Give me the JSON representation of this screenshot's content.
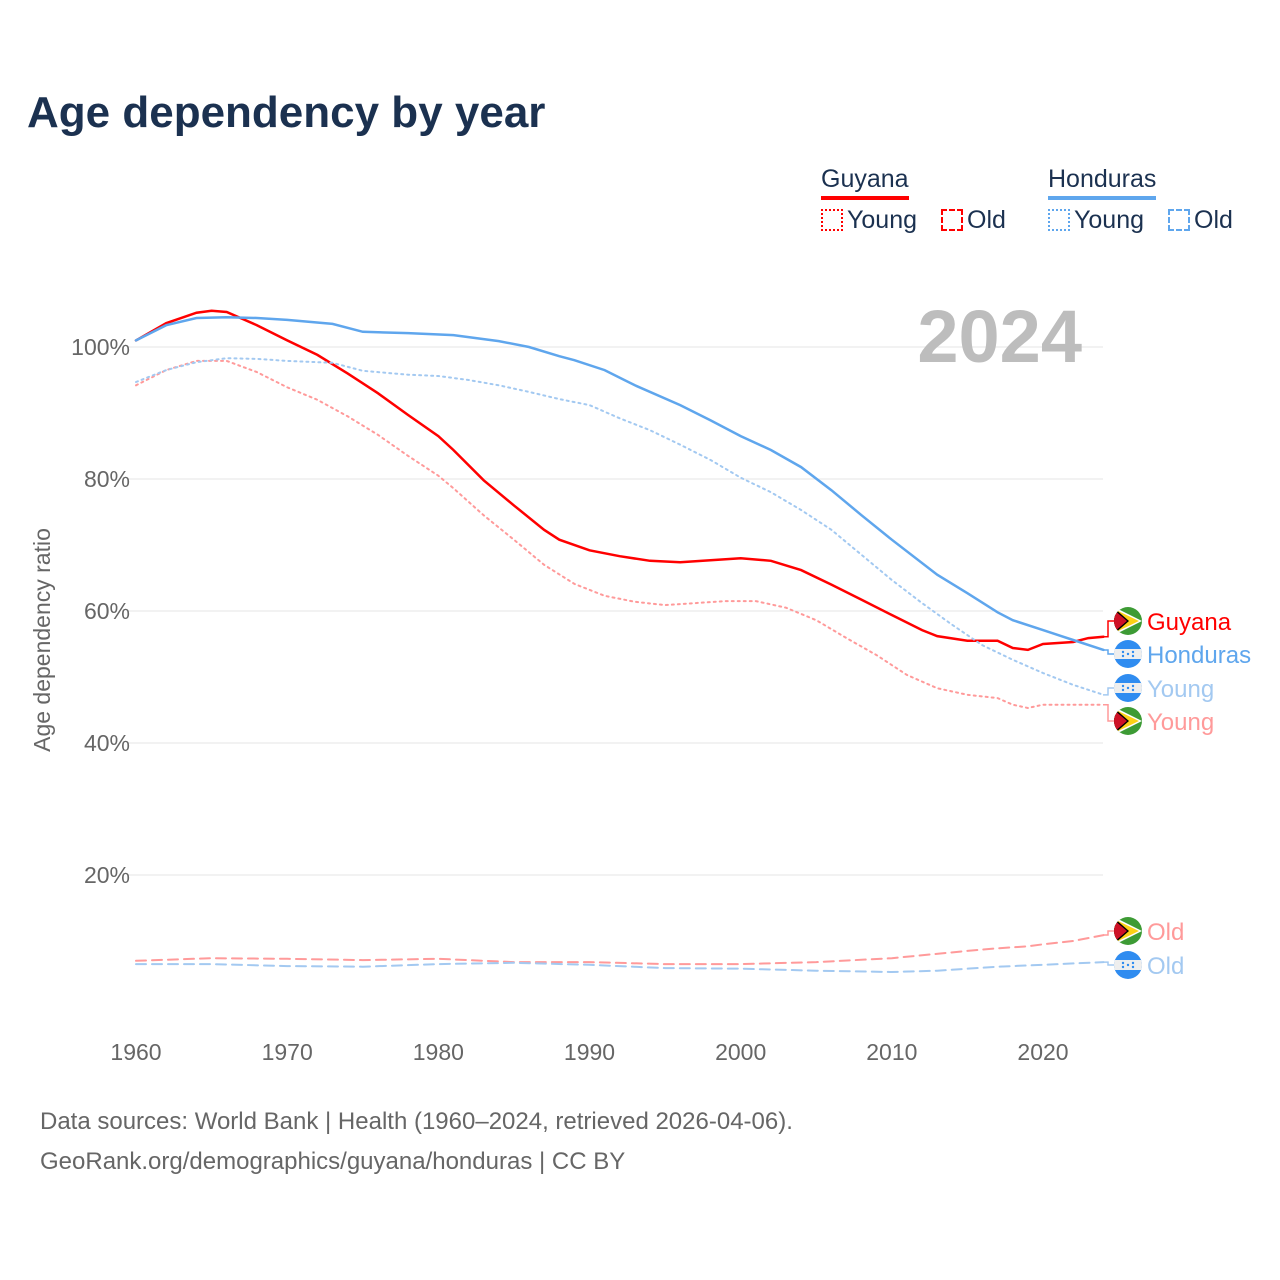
{
  "title": "Age dependency by year",
  "year_badge": "2024",
  "legend": {
    "groups": [
      {
        "name": "Guyana",
        "color": "#ff0000",
        "items": [
          "Young",
          "Old"
        ]
      },
      {
        "name": "Honduras",
        "color": "#5fa6ed",
        "items": [
          "Young",
          "Old"
        ]
      }
    ]
  },
  "footer": {
    "line1": "Data sources: World Bank | Health (1960–2024, retrieved 2026-04-06).",
    "line2": "GeoRank.org/demographics/guyana/honduras | CC BY"
  },
  "end_labels": {
    "guyana": "Guyana",
    "honduras": "Honduras",
    "young": "Young",
    "old": "Old"
  },
  "chart_data": {
    "type": "line",
    "title": "Age dependency by year",
    "xlabel": "",
    "ylabel": "Age dependency ratio",
    "xlim": [
      1960,
      2024
    ],
    "ylim": [
      0,
      110
    ],
    "xticks": [
      "1960",
      "1970",
      "1980",
      "1990",
      "2000",
      "2010",
      "2020"
    ],
    "yticks": [
      "20%",
      "40%",
      "60%",
      "80%",
      "100%"
    ],
    "grid": true,
    "series": [
      {
        "name": "Guyana",
        "style": "solid",
        "color": "#ff0000",
        "points": [
          [
            1960,
            101
          ],
          [
            1962,
            103.6
          ],
          [
            1964,
            105.2
          ],
          [
            1965,
            105.5
          ],
          [
            1966,
            105.3
          ],
          [
            1968,
            103.3
          ],
          [
            1970,
            101
          ],
          [
            1972,
            98.8
          ],
          [
            1974,
            96
          ],
          [
            1976,
            93
          ],
          [
            1978,
            89.7
          ],
          [
            1980,
            86.5
          ],
          [
            1981,
            84.4
          ],
          [
            1983,
            79.8
          ],
          [
            1985,
            76
          ],
          [
            1987,
            72.3
          ],
          [
            1988,
            70.8
          ],
          [
            1990,
            69.2
          ],
          [
            1992,
            68.3
          ],
          [
            1994,
            67.6
          ],
          [
            1996,
            67.4
          ],
          [
            1998,
            67.7
          ],
          [
            2000,
            68
          ],
          [
            2002,
            67.6
          ],
          [
            2004,
            66.2
          ],
          [
            2006,
            64
          ],
          [
            2008,
            61.7
          ],
          [
            2010,
            59.4
          ],
          [
            2012,
            57.1
          ],
          [
            2013,
            56.2
          ],
          [
            2015,
            55.5
          ],
          [
            2017,
            55.5
          ],
          [
            2018,
            54.4
          ],
          [
            2019,
            54.1
          ],
          [
            2020,
            55
          ],
          [
            2022,
            55.3
          ],
          [
            2023,
            55.9
          ],
          [
            2024,
            56.1
          ]
        ]
      },
      {
        "name": "Honduras",
        "style": "solid",
        "color": "#5fa6ed",
        "points": [
          [
            1960,
            101
          ],
          [
            1962,
            103.3
          ],
          [
            1964,
            104.4
          ],
          [
            1966,
            104.5
          ],
          [
            1968,
            104.4
          ],
          [
            1970,
            104.1
          ],
          [
            1973,
            103.5
          ],
          [
            1975,
            102.3
          ],
          [
            1978,
            102.1
          ],
          [
            1981,
            101.8
          ],
          [
            1984,
            100.9
          ],
          [
            1986,
            100
          ],
          [
            1988,
            98.6
          ],
          [
            1989,
            98
          ],
          [
            1991,
            96.5
          ],
          [
            1993,
            94.2
          ],
          [
            1996,
            91.2
          ],
          [
            1998,
            88.9
          ],
          [
            2000,
            86.5
          ],
          [
            2002,
            84.4
          ],
          [
            2004,
            81.8
          ],
          [
            2006,
            78.3
          ],
          [
            2008,
            74.5
          ],
          [
            2010,
            70.8
          ],
          [
            2013,
            65.5
          ],
          [
            2015,
            62.7
          ],
          [
            2017,
            59.8
          ],
          [
            2018,
            58.6
          ],
          [
            2020,
            57.1
          ],
          [
            2022,
            55.6
          ],
          [
            2024,
            54.1
          ]
        ]
      },
      {
        "name": "Guyana Young",
        "style": "dotted",
        "color": "#ff9a9a",
        "points": [
          [
            1960,
            94.2
          ],
          [
            1962,
            96.5
          ],
          [
            1964,
            97.9
          ],
          [
            1966,
            97.9
          ],
          [
            1968,
            96.2
          ],
          [
            1970,
            93.9
          ],
          [
            1972,
            92
          ],
          [
            1974,
            89.5
          ],
          [
            1976,
            86.7
          ],
          [
            1978,
            83.5
          ],
          [
            1980,
            80.5
          ],
          [
            1981,
            78.6
          ],
          [
            1983,
            74.5
          ],
          [
            1985,
            70.8
          ],
          [
            1987,
            67
          ],
          [
            1989,
            64.1
          ],
          [
            1991,
            62.3
          ],
          [
            1993,
            61.4
          ],
          [
            1995,
            60.9
          ],
          [
            1997,
            61.2
          ],
          [
            1999,
            61.5
          ],
          [
            2001,
            61.5
          ],
          [
            2003,
            60.5
          ],
          [
            2005,
            58.6
          ],
          [
            2007,
            55.9
          ],
          [
            2009,
            53.3
          ],
          [
            2011,
            50.3
          ],
          [
            2013,
            48.3
          ],
          [
            2015,
            47.3
          ],
          [
            2017,
            46.8
          ],
          [
            2018,
            45.8
          ],
          [
            2019,
            45.3
          ],
          [
            2020,
            45.8
          ],
          [
            2024,
            45.8
          ]
        ]
      },
      {
        "name": "Honduras Young",
        "style": "dotted",
        "color": "#a3c9f1",
        "points": [
          [
            1960,
            94.7
          ],
          [
            1962,
            96.5
          ],
          [
            1964,
            97.7
          ],
          [
            1966,
            98.3
          ],
          [
            1968,
            98.2
          ],
          [
            1970,
            97.9
          ],
          [
            1973,
            97.6
          ],
          [
            1975,
            96.4
          ],
          [
            1978,
            95.8
          ],
          [
            1980,
            95.6
          ],
          [
            1982,
            95
          ],
          [
            1984,
            94.2
          ],
          [
            1986,
            93.2
          ],
          [
            1988,
            92.1
          ],
          [
            1990,
            91.2
          ],
          [
            1992,
            89.2
          ],
          [
            1994,
            87.4
          ],
          [
            1996,
            85.2
          ],
          [
            1998,
            82.9
          ],
          [
            2000,
            80.2
          ],
          [
            2002,
            78
          ],
          [
            2004,
            75.3
          ],
          [
            2006,
            72.3
          ],
          [
            2008,
            68.5
          ],
          [
            2010,
            64.7
          ],
          [
            2012,
            61.2
          ],
          [
            2014,
            57.9
          ],
          [
            2016,
            54.8
          ],
          [
            2018,
            52.6
          ],
          [
            2020,
            50.6
          ],
          [
            2022,
            48.8
          ],
          [
            2024,
            47.3
          ]
        ]
      },
      {
        "name": "Guyana Old",
        "style": "dashed",
        "color": "#ff9a9a",
        "points": [
          [
            1960,
            7
          ],
          [
            1965,
            7.4
          ],
          [
            1970,
            7.3
          ],
          [
            1975,
            7.1
          ],
          [
            1980,
            7.3
          ],
          [
            1985,
            6.8
          ],
          [
            1990,
            6.8
          ],
          [
            1995,
            6.5
          ],
          [
            2000,
            6.5
          ],
          [
            2005,
            6.8
          ],
          [
            2010,
            7.4
          ],
          [
            2015,
            8.5
          ],
          [
            2017,
            8.9
          ],
          [
            2019,
            9.2
          ],
          [
            2020,
            9.5
          ],
          [
            2022,
            10
          ],
          [
            2024,
            10.9
          ]
        ]
      },
      {
        "name": "Honduras Old",
        "style": "dashed",
        "color": "#a3c9f1",
        "points": [
          [
            1960,
            6.5
          ],
          [
            1965,
            6.5
          ],
          [
            1970,
            6.2
          ],
          [
            1975,
            6.1
          ],
          [
            1980,
            6.5
          ],
          [
            1985,
            6.7
          ],
          [
            1990,
            6.4
          ],
          [
            1995,
            5.9
          ],
          [
            2000,
            5.8
          ],
          [
            2005,
            5.5
          ],
          [
            2010,
            5.3
          ],
          [
            2013,
            5.5
          ],
          [
            2017,
            6.1
          ],
          [
            2020,
            6.4
          ],
          [
            2024,
            6.8
          ]
        ]
      }
    ]
  }
}
